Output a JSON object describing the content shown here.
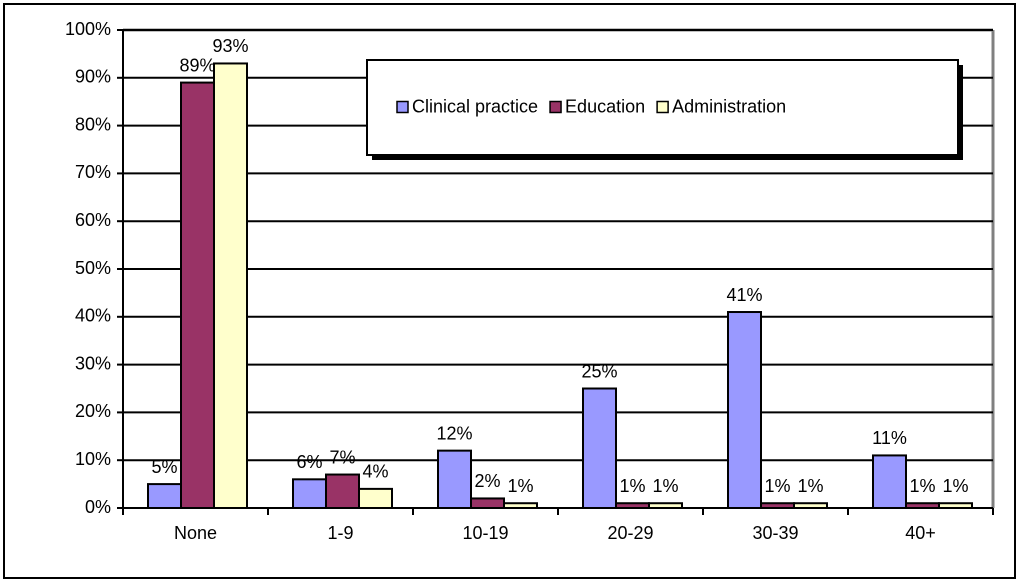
{
  "chart_data": {
    "type": "bar",
    "categories": [
      "None",
      "1-9",
      "10-19",
      "20-29",
      "30-39",
      "40+"
    ],
    "series": [
      {
        "name": "Clinical practice",
        "color": "#9999ff",
        "values": [
          5,
          6,
          12,
          25,
          41,
          11
        ],
        "value_labels": [
          "5%",
          "6%",
          "12%",
          "25%",
          "41%",
          "11%"
        ]
      },
      {
        "name": "Education",
        "color": "#993366",
        "values": [
          89,
          7,
          2,
          1,
          1,
          1
        ],
        "value_labels": [
          "89%",
          "7%",
          "2%",
          "1%",
          "1%",
          "1%"
        ]
      },
      {
        "name": "Administration",
        "color": "#ffffcc",
        "values": [
          93,
          4,
          1,
          1,
          1,
          1
        ],
        "value_labels": [
          "93%",
          "4%",
          "1%",
          "1%",
          "1%",
          "1%"
        ]
      }
    ],
    "ylim": [
      0,
      100
    ],
    "yticks": [
      {
        "value": 0,
        "label": "0%"
      },
      {
        "value": 10,
        "label": "10%"
      },
      {
        "value": 20,
        "label": "20%"
      },
      {
        "value": 30,
        "label": "30%"
      },
      {
        "value": 40,
        "label": "40%"
      },
      {
        "value": 50,
        "label": "50%"
      },
      {
        "value": 60,
        "label": "60%"
      },
      {
        "value": 70,
        "label": "70%"
      },
      {
        "value": 80,
        "label": "80%"
      },
      {
        "value": 90,
        "label": "90%"
      },
      {
        "value": 100,
        "label": "100%"
      }
    ],
    "grid": true,
    "legend": "top-right"
  }
}
